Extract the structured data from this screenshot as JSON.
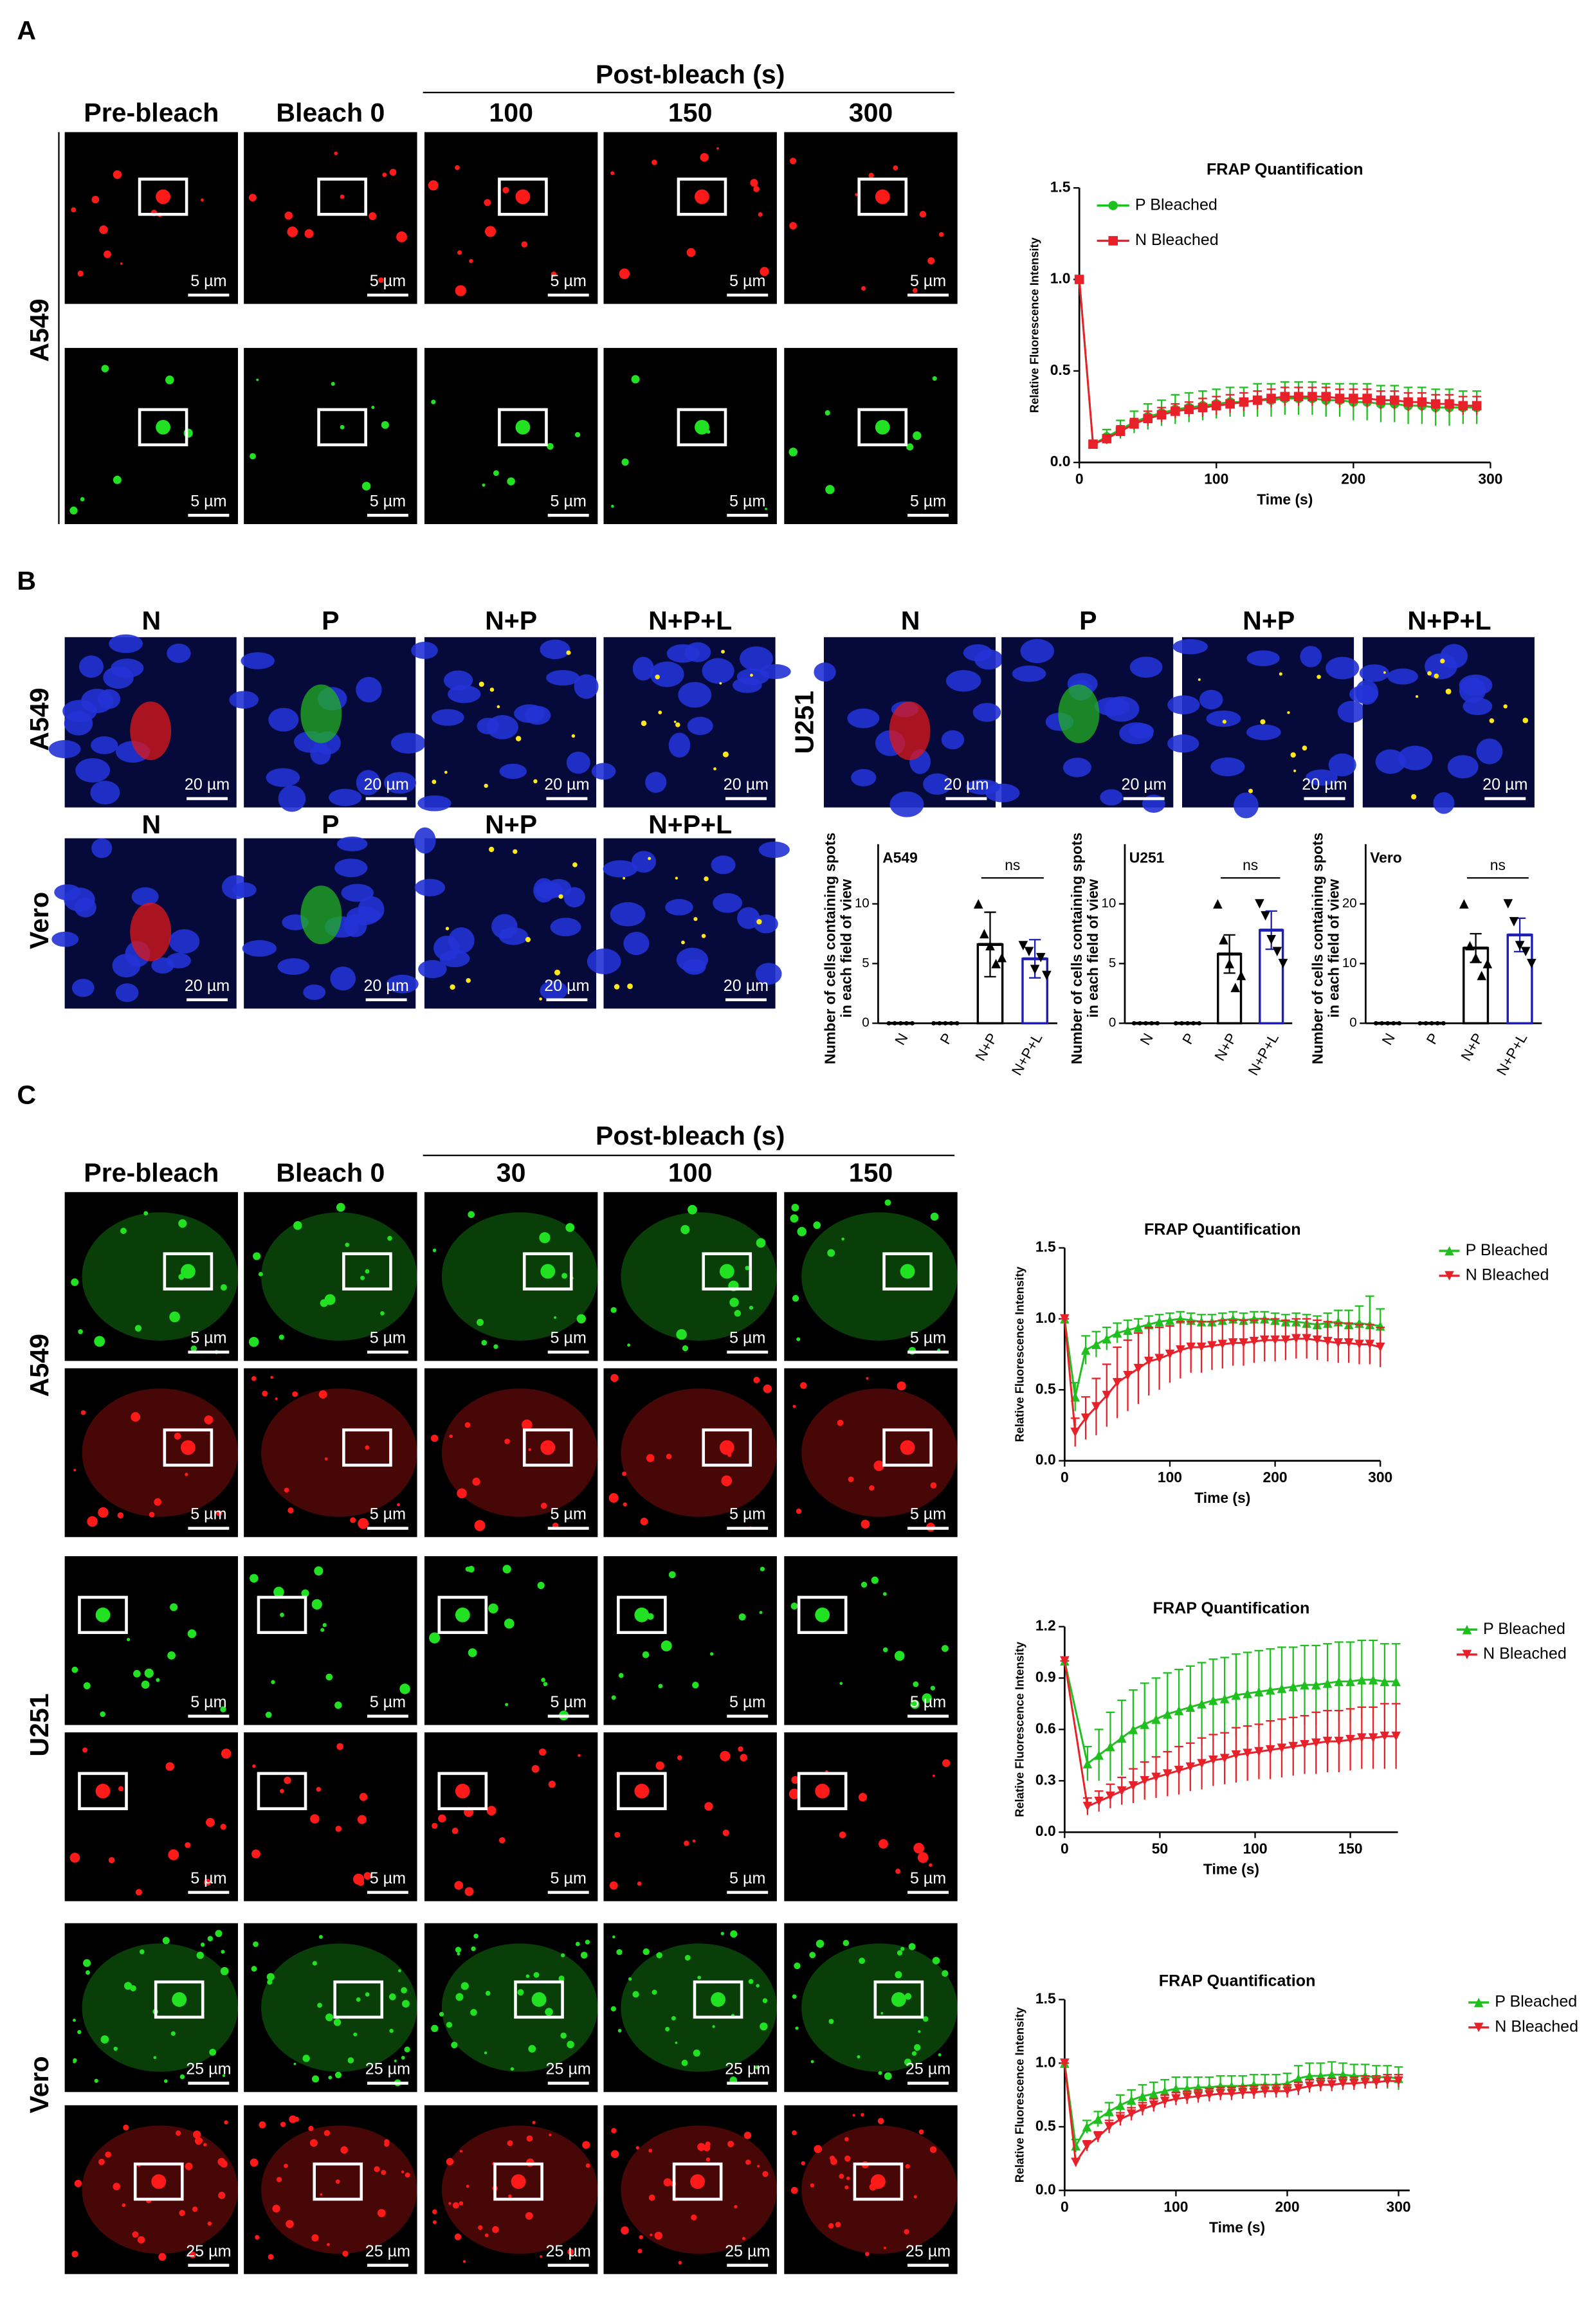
{
  "figure": {
    "A": {
      "letter": "A",
      "group_header": "Post-bleach (s)",
      "columns": [
        "Pre-bleach",
        "Bleach 0",
        "100",
        "150",
        "300"
      ],
      "rows": [
        "A549"
      ],
      "scale": "5 µm"
    },
    "B": {
      "letter": "B",
      "columns": [
        "N",
        "P",
        "N+P",
        "N+P+L"
      ],
      "rows": [
        "A549",
        "Vero",
        "U251"
      ],
      "scale": "20 µm"
    },
    "C": {
      "letter": "C",
      "group_header": "Post-bleach (s)",
      "columns": [
        "Pre-bleach",
        "Bleach 0",
        "30",
        "100",
        "150"
      ],
      "rows": [
        "A549",
        "U251",
        "Vero"
      ],
      "scales": [
        "5 µm",
        "25 µm"
      ]
    }
  },
  "chart_data": [
    {
      "type": "line",
      "title": "FRAP Quantification",
      "x_label": "Time (s)",
      "y_label": "Relative Fluorescence Intensity",
      "legend": "upper-left",
      "x": [
        0,
        10,
        20,
        30,
        40,
        50,
        60,
        70,
        80,
        90,
        100,
        110,
        120,
        130,
        140,
        150,
        160,
        170,
        180,
        190,
        200,
        210,
        220,
        230,
        240,
        250,
        260,
        270,
        280,
        290
      ],
      "xlim": [
        0,
        300
      ],
      "xticks": [
        0,
        100,
        200,
        300
      ],
      "ylim": [
        0,
        1.5
      ],
      "yticks": [
        {
          "value": 0,
          "label": "0.0"
        },
        0.5,
        {
          "value": 1,
          "label": "1.0"
        },
        1.5
      ],
      "series": [
        {
          "name": "P Bleached",
          "color": "#1fbf1f",
          "marker": "circle",
          "values": [
            1.0,
            0.1,
            0.14,
            0.18,
            0.22,
            0.25,
            0.27,
            0.29,
            0.3,
            0.31,
            0.32,
            0.33,
            0.33,
            0.34,
            0.34,
            0.35,
            0.35,
            0.35,
            0.34,
            0.34,
            0.33,
            0.33,
            0.32,
            0.32,
            0.31,
            0.31,
            0.3,
            0.3,
            0.3,
            0.3
          ],
          "errors": [
            0,
            0.02,
            0.04,
            0.05,
            0.06,
            0.07,
            0.07,
            0.08,
            0.08,
            0.08,
            0.08,
            0.08,
            0.08,
            0.09,
            0.09,
            0.09,
            0.09,
            0.09,
            0.09,
            0.09,
            0.1,
            0.1,
            0.1,
            0.1,
            0.1,
            0.1,
            0.1,
            0.1,
            0.09,
            0.09
          ]
        },
        {
          "name": "N Bleached",
          "color": "#e8202a",
          "marker": "square",
          "values": [
            1.0,
            0.1,
            0.13,
            0.17,
            0.21,
            0.24,
            0.26,
            0.28,
            0.29,
            0.3,
            0.31,
            0.32,
            0.33,
            0.34,
            0.35,
            0.36,
            0.36,
            0.36,
            0.36,
            0.35,
            0.35,
            0.35,
            0.34,
            0.34,
            0.33,
            0.33,
            0.32,
            0.32,
            0.31,
            0.31
          ],
          "errors": [
            0,
            0.01,
            0.02,
            0.03,
            0.03,
            0.04,
            0.04,
            0.04,
            0.04,
            0.05,
            0.05,
            0.05,
            0.05,
            0.05,
            0.05,
            0.05,
            0.05,
            0.05,
            0.05,
            0.05,
            0.05,
            0.05,
            0.05,
            0.05,
            0.05,
            0.05,
            0.05,
            0.05,
            0.05,
            0.05
          ]
        }
      ]
    },
    {
      "type": "bar",
      "title": "A549",
      "y_label": [
        "Number of cells containing spots",
        "in each field of view"
      ],
      "annotation": "ns",
      "categories": [
        "N",
        "P",
        "N+P",
        "N+P+L"
      ],
      "values": [
        0,
        0,
        6.6,
        5.4
      ],
      "errors": [
        0,
        0,
        2.7,
        1.6
      ],
      "colors": [
        "#000000",
        "#000000",
        "#000000",
        "#1f1fb4"
      ],
      "points": [
        [
          0,
          0,
          0,
          0,
          0
        ],
        [
          0,
          0,
          0,
          0,
          0
        ],
        [
          10,
          7.5,
          6.5,
          5,
          5.5
        ],
        [
          6.5,
          6,
          4.5,
          5.5,
          4
        ]
      ],
      "ylim": [
        0,
        15
      ],
      "yticks": [
        0,
        5,
        10
      ]
    },
    {
      "type": "bar",
      "title": "U251",
      "y_label": [
        "Number of cells containing spots",
        "in each field of view"
      ],
      "annotation": "ns",
      "categories": [
        "N",
        "P",
        "N+P",
        "N+P+L"
      ],
      "values": [
        0,
        0,
        5.8,
        7.8
      ],
      "errors": [
        0,
        0,
        1.6,
        1.6
      ],
      "colors": [
        "#000000",
        "#000000",
        "#000000",
        "#1f1fb4"
      ],
      "points": [
        [
          0,
          0,
          0,
          0,
          0
        ],
        [
          0,
          0,
          0,
          0,
          0
        ],
        [
          10,
          7,
          5,
          3,
          4
        ],
        [
          10,
          9,
          7,
          6,
          5
        ]
      ],
      "ylim": [
        0,
        15
      ],
      "yticks": [
        0,
        5,
        10
      ]
    },
    {
      "type": "bar",
      "title": "Vero",
      "y_label": [
        "Number of cells containing spots",
        "in each field of view"
      ],
      "annotation": "ns",
      "categories": [
        "N",
        "P",
        "N+P",
        "N+P+L"
      ],
      "values": [
        0,
        0,
        12.6,
        14.8
      ],
      "errors": [
        0,
        0,
        2.4,
        2.8
      ],
      "colors": [
        "#000000",
        "#000000",
        "#000000",
        "#1f1fb4"
      ],
      "points": [
        [
          0,
          0,
          0,
          0,
          0
        ],
        [
          0,
          0,
          0,
          0,
          0
        ],
        [
          20,
          13,
          11,
          8,
          10
        ],
        [
          20,
          17,
          13,
          12,
          10
        ]
      ],
      "ylim": [
        0,
        30
      ],
      "yticks": [
        0,
        10,
        20
      ]
    },
    {
      "type": "line",
      "title": "FRAP Quantification",
      "x_label": "Time (s)",
      "y_label": "Relative Fluorescence Intensity",
      "legend": "outside-right",
      "x": [
        0,
        10,
        20,
        30,
        40,
        50,
        60,
        70,
        80,
        90,
        100,
        110,
        120,
        130,
        140,
        150,
        160,
        170,
        180,
        190,
        200,
        210,
        220,
        230,
        240,
        250,
        260,
        270,
        280,
        290,
        300
      ],
      "xlim": [
        0,
        300
      ],
      "xticks": [
        0,
        100,
        200,
        300
      ],
      "ylim": [
        0,
        1.5
      ],
      "yticks": [
        {
          "value": 0,
          "label": "0.0"
        },
        0.5,
        {
          "value": 1,
          "label": "1.0"
        },
        1.5
      ],
      "series": [
        {
          "name": "P Bleached",
          "color": "#1fbf1f",
          "marker": "triangle-up",
          "values": [
            1.0,
            0.45,
            0.78,
            0.82,
            0.86,
            0.9,
            0.92,
            0.94,
            0.96,
            0.98,
            0.99,
            1.0,
            0.99,
            0.98,
            0.98,
            0.99,
            1.0,
            0.99,
            1.0,
            1.0,
            0.99,
            0.98,
            0.98,
            0.97,
            0.96,
            0.97,
            0.98,
            0.96,
            0.97,
            0.96,
            0.95
          ],
          "errors": [
            0,
            0.1,
            0.1,
            0.09,
            0.08,
            0.07,
            0.07,
            0.06,
            0.06,
            0.05,
            0.05,
            0.05,
            0.05,
            0.05,
            0.05,
            0.05,
            0.05,
            0.05,
            0.05,
            0.05,
            0.05,
            0.05,
            0.06,
            0.06,
            0.06,
            0.07,
            0.08,
            0.1,
            0.12,
            0.2,
            0.12
          ]
        },
        {
          "name": "N Bleached",
          "color": "#e8202a",
          "marker": "triangle-down",
          "values": [
            1.0,
            0.2,
            0.3,
            0.38,
            0.46,
            0.55,
            0.6,
            0.65,
            0.7,
            0.72,
            0.75,
            0.78,
            0.8,
            0.8,
            0.81,
            0.82,
            0.83,
            0.83,
            0.84,
            0.85,
            0.85,
            0.85,
            0.86,
            0.86,
            0.85,
            0.84,
            0.83,
            0.83,
            0.82,
            0.82,
            0.8
          ],
          "errors": [
            0,
            0.1,
            0.15,
            0.2,
            0.22,
            0.25,
            0.25,
            0.25,
            0.24,
            0.22,
            0.2,
            0.2,
            0.18,
            0.18,
            0.17,
            0.17,
            0.16,
            0.16,
            0.15,
            0.15,
            0.15,
            0.14,
            0.14,
            0.14,
            0.14,
            0.14,
            0.14,
            0.14,
            0.14,
            0.14,
            0.14
          ]
        }
      ]
    },
    {
      "type": "line",
      "title": "FRAP Quantification",
      "x_label": "Time (s)",
      "y_label": "Relative Fluorescence Intensity",
      "legend": "outside-right",
      "x": [
        0,
        12,
        18,
        24,
        30,
        36,
        42,
        48,
        54,
        60,
        66,
        72,
        78,
        84,
        90,
        96,
        102,
        108,
        114,
        120,
        126,
        132,
        138,
        144,
        150,
        156,
        162,
        168,
        174
      ],
      "xlim": [
        0,
        175
      ],
      "xticks": [
        0,
        50,
        100,
        150
      ],
      "ylim": [
        0,
        1.2
      ],
      "yticks": [
        {
          "value": 0,
          "label": "0.0"
        },
        0.3,
        0.6,
        0.9,
        1.2
      ],
      "series": [
        {
          "name": "P Bleached",
          "color": "#1fbf1f",
          "marker": "triangle-up",
          "values": [
            1.0,
            0.4,
            0.45,
            0.5,
            0.55,
            0.6,
            0.63,
            0.66,
            0.69,
            0.71,
            0.73,
            0.75,
            0.77,
            0.78,
            0.8,
            0.81,
            0.82,
            0.83,
            0.84,
            0.85,
            0.86,
            0.86,
            0.87,
            0.88,
            0.88,
            0.89,
            0.89,
            0.88,
            0.88
          ],
          "errors": [
            0,
            0.1,
            0.15,
            0.2,
            0.22,
            0.23,
            0.24,
            0.24,
            0.24,
            0.24,
            0.24,
            0.24,
            0.24,
            0.24,
            0.24,
            0.24,
            0.24,
            0.24,
            0.24,
            0.23,
            0.23,
            0.23,
            0.23,
            0.23,
            0.23,
            0.23,
            0.23,
            0.22,
            0.22
          ]
        },
        {
          "name": "N Bleached",
          "color": "#e8202a",
          "marker": "triangle-down",
          "values": [
            1.0,
            0.15,
            0.18,
            0.21,
            0.24,
            0.27,
            0.3,
            0.32,
            0.34,
            0.36,
            0.38,
            0.4,
            0.42,
            0.43,
            0.45,
            0.46,
            0.47,
            0.48,
            0.49,
            0.5,
            0.51,
            0.52,
            0.53,
            0.53,
            0.54,
            0.55,
            0.55,
            0.56,
            0.56
          ],
          "errors": [
            0,
            0.05,
            0.06,
            0.07,
            0.08,
            0.1,
            0.11,
            0.12,
            0.13,
            0.14,
            0.14,
            0.15,
            0.15,
            0.15,
            0.16,
            0.16,
            0.16,
            0.17,
            0.17,
            0.17,
            0.17,
            0.18,
            0.18,
            0.18,
            0.18,
            0.18,
            0.18,
            0.19,
            0.19
          ]
        }
      ]
    },
    {
      "type": "line",
      "title": "FRAP Quantification",
      "x_label": "Time (s)",
      "y_label": "Relative Fluorescence Intensity",
      "legend": "outside-right",
      "x": [
        0,
        10,
        20,
        30,
        40,
        50,
        60,
        70,
        80,
        90,
        100,
        110,
        120,
        130,
        140,
        150,
        160,
        170,
        180,
        190,
        200,
        210,
        220,
        230,
        240,
        250,
        260,
        270,
        280,
        290,
        300
      ],
      "xlim": [
        0,
        310
      ],
      "xticks": [
        0,
        100,
        200,
        300
      ],
      "ylim": [
        0,
        1.5
      ],
      "yticks": [
        {
          "value": 0,
          "label": "0.0"
        },
        0.5,
        {
          "value": 1,
          "label": "1.0"
        },
        1.5
      ],
      "series": [
        {
          "name": "P Bleached",
          "color": "#1fbf1f",
          "marker": "triangle-up",
          "values": [
            1.0,
            0.35,
            0.5,
            0.56,
            0.62,
            0.67,
            0.71,
            0.74,
            0.76,
            0.78,
            0.8,
            0.8,
            0.81,
            0.81,
            0.82,
            0.82,
            0.82,
            0.83,
            0.83,
            0.83,
            0.84,
            0.88,
            0.9,
            0.9,
            0.91,
            0.91,
            0.9,
            0.9,
            0.89,
            0.89,
            0.88
          ],
          "errors": [
            0,
            0.05,
            0.05,
            0.06,
            0.07,
            0.08,
            0.08,
            0.09,
            0.09,
            0.09,
            0.09,
            0.09,
            0.08,
            0.08,
            0.08,
            0.08,
            0.08,
            0.08,
            0.08,
            0.08,
            0.08,
            0.1,
            0.1,
            0.1,
            0.1,
            0.09,
            0.09,
            0.09,
            0.09,
            0.09,
            0.09
          ]
        },
        {
          "name": "N Bleached",
          "color": "#e8202a",
          "marker": "triangle-down",
          "values": [
            1.0,
            0.22,
            0.35,
            0.42,
            0.5,
            0.56,
            0.6,
            0.64,
            0.67,
            0.7,
            0.72,
            0.73,
            0.74,
            0.75,
            0.76,
            0.76,
            0.77,
            0.77,
            0.78,
            0.78,
            0.78,
            0.8,
            0.82,
            0.83,
            0.83,
            0.84,
            0.84,
            0.85,
            0.85,
            0.86,
            0.86
          ],
          "errors": [
            0,
            0.03,
            0.04,
            0.04,
            0.05,
            0.05,
            0.05,
            0.05,
            0.05,
            0.05,
            0.05,
            0.05,
            0.05,
            0.05,
            0.05,
            0.05,
            0.05,
            0.05,
            0.05,
            0.05,
            0.05,
            0.05,
            0.05,
            0.05,
            0.05,
            0.05,
            0.05,
            0.05,
            0.05,
            0.05,
            0.05
          ]
        }
      ]
    }
  ]
}
